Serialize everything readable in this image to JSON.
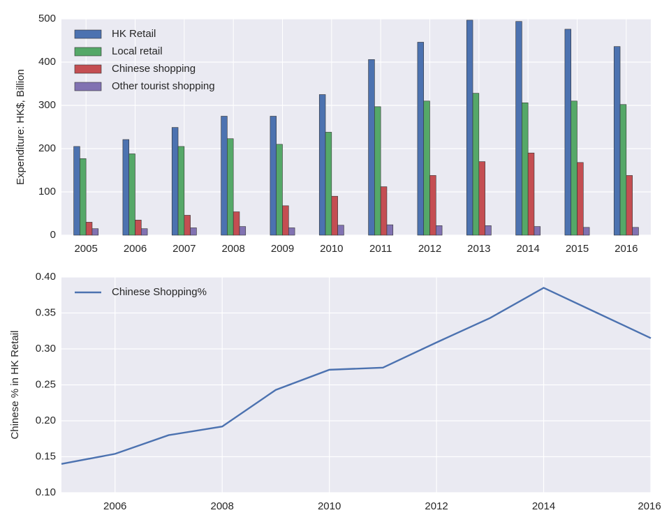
{
  "chart_data": [
    {
      "type": "bar",
      "categories": [
        "2005",
        "2006",
        "2007",
        "2008",
        "2009",
        "2010",
        "2011",
        "2012",
        "2013",
        "2014",
        "2015",
        "2016"
      ],
      "series": [
        {
          "name": "HK Retail",
          "color": "#4c72b0",
          "values": [
            205,
            221,
            249,
            275,
            275,
            325,
            406,
            446,
            497,
            494,
            476,
            436
          ]
        },
        {
          "name": "Local retail",
          "color": "#55a868",
          "values": [
            177,
            188,
            205,
            223,
            210,
            238,
            297,
            310,
            328,
            306,
            310,
            302
          ]
        },
        {
          "name": "Chinese shopping",
          "color": "#c44e52",
          "values": [
            30,
            35,
            46,
            54,
            68,
            90,
            112,
            138,
            170,
            190,
            168,
            138
          ]
        },
        {
          "name": "Other tourist shopping",
          "color": "#8172b2",
          "values": [
            15,
            15,
            17,
            20,
            17,
            23,
            24,
            22,
            22,
            20,
            18,
            18
          ]
        }
      ],
      "ylabel": "Expenditure: HK$, Billion",
      "ylim": [
        0,
        500
      ],
      "yticks": [
        0,
        100,
        200,
        300,
        400,
        500
      ],
      "grid": true,
      "legend": "upper left"
    },
    {
      "type": "line",
      "x": [
        2005,
        2006,
        2007,
        2008,
        2009,
        2010,
        2011,
        2012,
        2013,
        2014,
        2015,
        2016
      ],
      "series": [
        {
          "name": "Chinese Shopping%",
          "color": "#4c72b0",
          "values": [
            0.14,
            0.154,
            0.18,
            0.192,
            0.243,
            0.271,
            0.274,
            0.309,
            0.343,
            0.385,
            0.35,
            0.315
          ]
        }
      ],
      "ylabel": "Chinese % in HK Retail",
      "xlim": [
        2005,
        2016
      ],
      "xticks": [
        2006,
        2008,
        2010,
        2012,
        2014,
        2016
      ],
      "ylim": [
        0.1,
        0.4
      ],
      "yticks": [
        {
          "value": 0.1,
          "label": "0.10"
        },
        0.15,
        {
          "value": 0.2,
          "label": "0.20"
        },
        0.25,
        {
          "value": 0.3,
          "label": "0.30"
        },
        0.35,
        {
          "value": 0.4,
          "label": "0.40"
        }
      ],
      "grid": true,
      "legend": "upper left"
    }
  ]
}
